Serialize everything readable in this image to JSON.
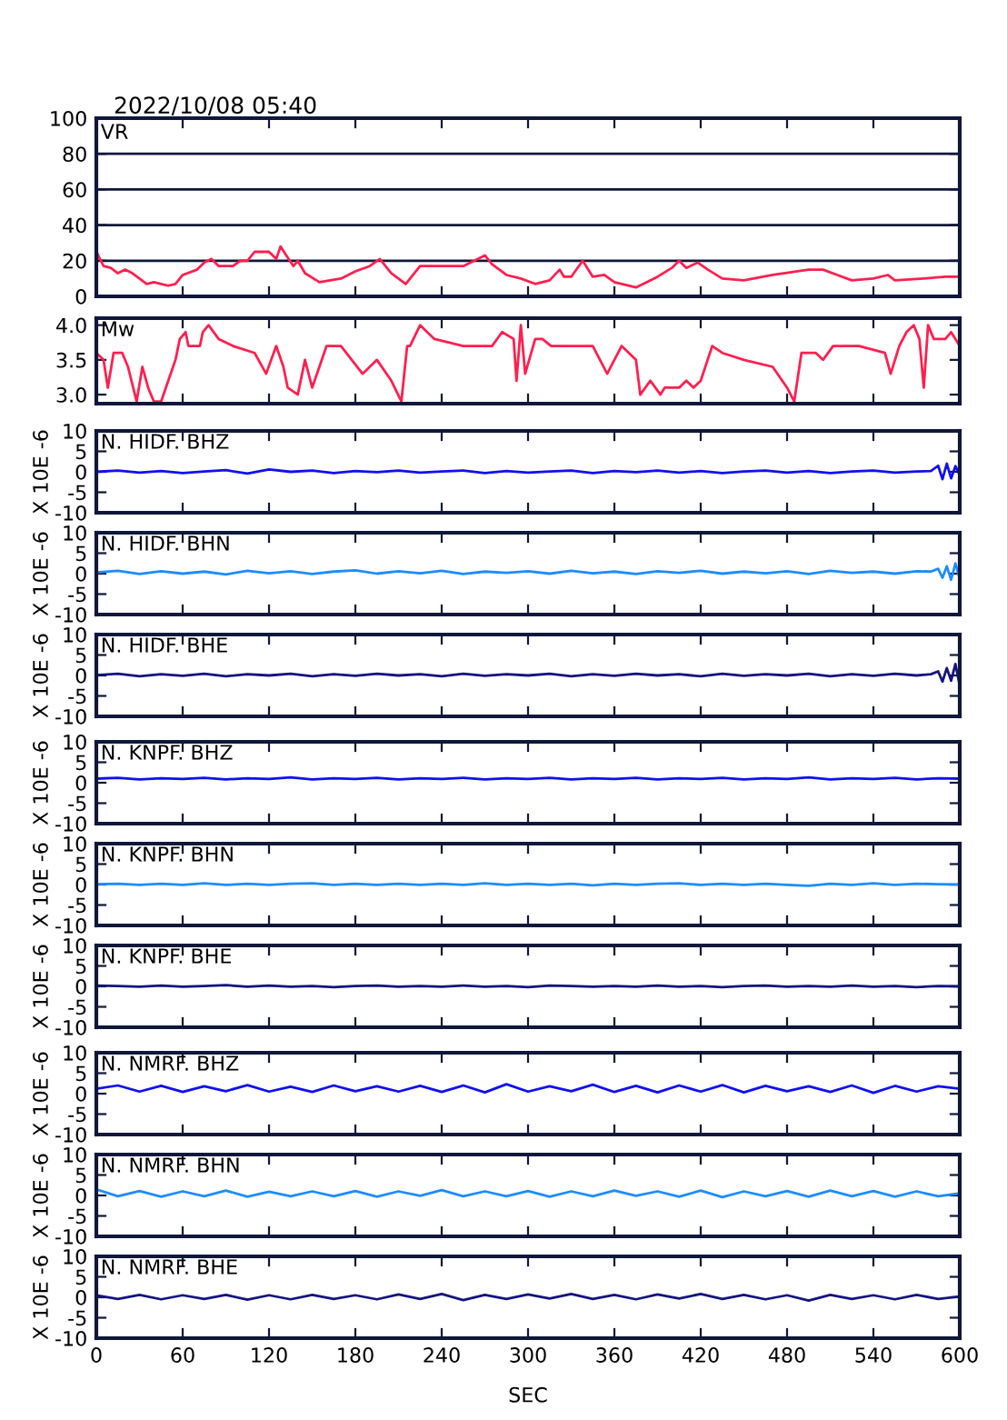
{
  "chart_data": [
    {
      "type": "line",
      "title": "2022/10/08 05:40",
      "xlim": [
        0,
        600
      ],
      "xticks": [
        0,
        60,
        120,
        180,
        240,
        300,
        360,
        420,
        480,
        540,
        600
      ],
      "ylim": [
        0,
        100
      ],
      "yticks": [
        0,
        20,
        40,
        60,
        80,
        100
      ],
      "grid": "y",
      "tick_labels": "y",
      "series": [
        {
          "name": "VR",
          "color": "#ff1f4f",
          "x": [
            0,
            5,
            10,
            15,
            20,
            25,
            30,
            35,
            40,
            45,
            50,
            55,
            60,
            70,
            75,
            80,
            85,
            95,
            100,
            105,
            110,
            120,
            125,
            128,
            132,
            137,
            140,
            145,
            155,
            170,
            180,
            190,
            197,
            205,
            215,
            225,
            240,
            255,
            270,
            275,
            285,
            295,
            305,
            315,
            322,
            325,
            330,
            338,
            345,
            353,
            360,
            375,
            390,
            400,
            405,
            410,
            418,
            425,
            435,
            450,
            470,
            495,
            505,
            515,
            525,
            540,
            550,
            555,
            575,
            590,
            600
          ],
          "values": [
            25,
            17,
            16,
            13,
            15,
            13,
            10,
            7,
            8,
            7,
            6,
            7,
            12,
            15,
            19,
            21,
            17,
            17,
            20,
            20,
            25,
            25,
            21,
            28,
            23,
            17,
            20,
            13,
            8,
            10,
            14,
            17,
            21,
            13,
            7,
            17,
            17,
            17,
            23,
            18,
            12,
            10,
            7,
            9,
            15,
            11,
            11,
            20,
            11,
            12,
            8,
            5,
            11,
            16,
            20,
            16,
            19,
            15,
            10,
            9,
            12,
            15,
            15,
            12,
            9,
            10,
            12,
            9,
            10,
            11,
            11
          ]
        }
      ]
    },
    {
      "type": "line",
      "xlim": [
        0,
        600
      ],
      "xticks": [
        0,
        60,
        120,
        180,
        240,
        300,
        360,
        420,
        480,
        540,
        600
      ],
      "ylim": [
        2.87,
        4.1
      ],
      "yticks": [
        {
          "value": 3,
          "label": "3.0"
        },
        3.5,
        {
          "value": 4,
          "label": "4.0"
        }
      ],
      "tick_labels": "y",
      "series": [
        {
          "name": "Mw",
          "color": "#ff1f4f",
          "x": [
            0,
            5,
            8,
            12,
            18,
            22,
            28,
            32,
            36,
            40,
            45,
            50,
            55,
            58,
            62,
            64,
            72,
            74,
            78,
            85,
            95,
            110,
            118,
            125,
            130,
            133,
            140,
            145,
            150,
            160,
            170,
            185,
            195,
            205,
            212,
            216,
            218,
            225,
            235,
            255,
            275,
            282,
            290,
            292,
            295,
            298,
            305,
            310,
            316,
            330,
            345,
            355,
            365,
            375,
            378,
            385,
            392,
            395,
            405,
            410,
            415,
            420,
            428,
            435,
            450,
            470,
            480,
            485,
            490,
            500,
            505,
            512,
            530,
            548,
            552,
            558,
            563,
            568,
            572,
            575,
            578,
            582,
            590,
            594,
            600
          ],
          "values": [
            3.6,
            3.5,
            3.1,
            3.6,
            3.6,
            3.4,
            2.9,
            3.4,
            3.1,
            2.9,
            2.9,
            3.2,
            3.5,
            3.8,
            3.9,
            3.7,
            3.7,
            3.9,
            4.0,
            3.8,
            3.7,
            3.6,
            3.3,
            3.7,
            3.4,
            3.1,
            3.0,
            3.5,
            3.1,
            3.7,
            3.7,
            3.3,
            3.5,
            3.2,
            2.9,
            3.7,
            3.7,
            4.0,
            3.8,
            3.7,
            3.7,
            3.9,
            3.8,
            3.2,
            4.0,
            3.3,
            3.8,
            3.8,
            3.7,
            3.7,
            3.7,
            3.3,
            3.7,
            3.5,
            3.0,
            3.2,
            3.0,
            3.1,
            3.1,
            3.2,
            3.1,
            3.2,
            3.7,
            3.6,
            3.5,
            3.4,
            3.1,
            2.9,
            3.6,
            3.6,
            3.5,
            3.7,
            3.7,
            3.6,
            3.3,
            3.7,
            3.9,
            4.0,
            3.8,
            3.1,
            4.0,
            3.8,
            3.8,
            3.9,
            3.7
          ]
        }
      ]
    },
    {
      "type": "line",
      "ylabel": "X 10E -6",
      "xlim": [
        0,
        600
      ],
      "xticks": [
        0,
        60,
        120,
        180,
        240,
        300,
        360,
        420,
        480,
        540,
        600
      ],
      "ylim": [
        -10,
        10
      ],
      "yticks": [
        -10,
        -5,
        0,
        5,
        10
      ],
      "tick_labels": "y",
      "series": [
        {
          "name": "N. HIDF. BHZ",
          "color": "#1010f0",
          "x": [
            0,
            15,
            30,
            45,
            60,
            75,
            90,
            105,
            120,
            135,
            150,
            165,
            180,
            195,
            210,
            225,
            240,
            255,
            270,
            285,
            300,
            315,
            330,
            345,
            360,
            375,
            390,
            405,
            420,
            435,
            450,
            465,
            480,
            495,
            510,
            525,
            540,
            555,
            570,
            580,
            585,
            588,
            591,
            594,
            597,
            600
          ],
          "values": [
            0,
            0.3,
            -0.2,
            0.2,
            -0.3,
            0.1,
            0.4,
            -0.4,
            0.6,
            0,
            0.3,
            -0.3,
            0.2,
            -0.1,
            0.3,
            -0.2,
            0.1,
            0.3,
            -0.3,
            0.2,
            -0.2,
            0.1,
            0.3,
            -0.3,
            0.2,
            -0.1,
            0.3,
            -0.2,
            0.2,
            -0.3,
            0.1,
            0.3,
            -0.2,
            0.2,
            -0.3,
            0.1,
            0.3,
            -0.2,
            0.1,
            0.2,
            1.5,
            -1.8,
            2,
            -1.6,
            1.4,
            -0.8
          ]
        }
      ]
    },
    {
      "type": "line",
      "ylabel": "X 10E -6",
      "xlim": [
        0,
        600
      ],
      "xticks": [
        0,
        60,
        120,
        180,
        240,
        300,
        360,
        420,
        480,
        540,
        600
      ],
      "ylim": [
        -10,
        10
      ],
      "yticks": [
        -10,
        -5,
        0,
        5,
        10
      ],
      "tick_labels": "y",
      "series": [
        {
          "name": "N. HIDF. BHN",
          "color": "#1e8cff",
          "x": [
            0,
            15,
            30,
            45,
            60,
            75,
            90,
            105,
            120,
            135,
            150,
            165,
            180,
            195,
            210,
            225,
            240,
            255,
            270,
            285,
            300,
            315,
            330,
            345,
            360,
            375,
            390,
            405,
            420,
            435,
            450,
            465,
            480,
            495,
            510,
            525,
            540,
            555,
            570,
            580,
            585,
            588,
            591,
            594,
            597,
            600
          ],
          "values": [
            0.3,
            0.7,
            -0.1,
            0.6,
            0,
            0.5,
            -0.2,
            0.7,
            0.1,
            0.6,
            -0.1,
            0.5,
            0.8,
            0,
            0.6,
            0.1,
            0.7,
            -0.1,
            0.5,
            0.2,
            0.6,
            0,
            0.7,
            0.1,
            0.5,
            -0.1,
            0.6,
            0.2,
            0.7,
            0,
            0.5,
            0.1,
            0.6,
            -0.1,
            0.7,
            0.2,
            0.5,
            0,
            0.6,
            0.5,
            1.2,
            -1,
            1.8,
            -1.5,
            2.5,
            -1.2
          ]
        }
      ]
    },
    {
      "type": "line",
      "ylabel": "X 10E -6",
      "xlim": [
        0,
        600
      ],
      "xticks": [
        0,
        60,
        120,
        180,
        240,
        300,
        360,
        420,
        480,
        540,
        600
      ],
      "ylim": [
        -10,
        10
      ],
      "yticks": [
        -10,
        -5,
        0,
        5,
        10
      ],
      "tick_labels": "y",
      "series": [
        {
          "name": "N. HIDF. BHE",
          "color": "#14147f",
          "x": [
            0,
            15,
            30,
            45,
            60,
            75,
            90,
            105,
            120,
            135,
            150,
            165,
            180,
            195,
            210,
            225,
            240,
            255,
            270,
            285,
            300,
            315,
            330,
            345,
            360,
            375,
            390,
            405,
            420,
            435,
            450,
            465,
            480,
            495,
            510,
            525,
            540,
            555,
            570,
            580,
            585,
            588,
            591,
            594,
            597,
            600
          ],
          "values": [
            0.1,
            0.4,
            -0.2,
            0.3,
            -0.1,
            0.4,
            -0.2,
            0.3,
            0,
            0.4,
            -0.2,
            0.3,
            -0.1,
            0.4,
            0,
            0.3,
            -0.2,
            0.4,
            -0.1,
            0.3,
            0,
            0.4,
            -0.2,
            0.3,
            -0.1,
            0.4,
            0,
            0.3,
            -0.2,
            0.4,
            -0.1,
            0.3,
            0,
            0.4,
            -0.2,
            0.3,
            -0.1,
            0.4,
            0,
            0.3,
            1,
            -1.5,
            1.8,
            -1.3,
            2.8,
            -2.5
          ]
        }
      ]
    },
    {
      "type": "line",
      "ylabel": "X 10E -6",
      "xlim": [
        0,
        600
      ],
      "xticks": [
        0,
        60,
        120,
        180,
        240,
        300,
        360,
        420,
        480,
        540,
        600
      ],
      "ylim": [
        -10,
        10
      ],
      "yticks": [
        -10,
        -5,
        0,
        5,
        10
      ],
      "tick_labels": "y",
      "series": [
        {
          "name": "N. KNPF. BHZ",
          "color": "#1010f0",
          "x": [
            0,
            15,
            30,
            45,
            60,
            75,
            90,
            105,
            120,
            135,
            150,
            165,
            180,
            195,
            210,
            225,
            240,
            255,
            270,
            285,
            300,
            315,
            330,
            345,
            360,
            375,
            390,
            405,
            420,
            435,
            450,
            465,
            480,
            495,
            510,
            525,
            540,
            555,
            570,
            585,
            600
          ],
          "values": [
            1,
            1.2,
            0.8,
            1.1,
            0.9,
            1.2,
            0.8,
            1.1,
            0.9,
            1.3,
            0.8,
            1.1,
            0.9,
            1.2,
            0.8,
            1.1,
            0.9,
            1.2,
            0.8,
            1.1,
            0.9,
            1.2,
            0.8,
            1.1,
            0.9,
            1.2,
            0.8,
            1.1,
            0.9,
            1.2,
            0.8,
            1.1,
            0.9,
            1.3,
            0.8,
            1.1,
            0.9,
            1.2,
            0.8,
            1.1,
            1
          ]
        }
      ]
    },
    {
      "type": "line",
      "ylabel": "X 10E -6",
      "xlim": [
        0,
        600
      ],
      "xticks": [
        0,
        60,
        120,
        180,
        240,
        300,
        360,
        420,
        480,
        540,
        600
      ],
      "ylim": [
        -10,
        10
      ],
      "yticks": [
        -10,
        -5,
        0,
        5,
        10
      ],
      "tick_labels": "y",
      "series": [
        {
          "name": "N. KNPF. BHN",
          "color": "#1e8cff",
          "x": [
            0,
            15,
            30,
            45,
            60,
            75,
            90,
            105,
            120,
            135,
            150,
            165,
            180,
            195,
            210,
            225,
            240,
            255,
            270,
            285,
            300,
            315,
            330,
            345,
            360,
            375,
            390,
            405,
            420,
            435,
            450,
            465,
            480,
            495,
            510,
            525,
            540,
            555,
            570,
            585,
            600
          ],
          "values": [
            0.1,
            0.2,
            -0.1,
            0.2,
            -0.1,
            0.3,
            -0.1,
            0.2,
            -0.1,
            0.2,
            0.3,
            -0.1,
            0.2,
            -0.1,
            0.2,
            -0.1,
            0.2,
            -0.1,
            0.3,
            -0.1,
            0.2,
            -0.1,
            0.2,
            -0.2,
            0.2,
            -0.1,
            0.2,
            0.3,
            -0.1,
            0.2,
            -0.1,
            0.2,
            -0.1,
            -0.3,
            0.2,
            -0.1,
            0.3,
            -0.1,
            0.2,
            0.1,
            0
          ]
        }
      ]
    },
    {
      "type": "line",
      "ylabel": "X 10E -6",
      "xlim": [
        0,
        600
      ],
      "xticks": [
        0,
        60,
        120,
        180,
        240,
        300,
        360,
        420,
        480,
        540,
        600
      ],
      "ylim": [
        -10,
        10
      ],
      "yticks": [
        -10,
        -5,
        0,
        5,
        10
      ],
      "tick_labels": "y",
      "series": [
        {
          "name": "N. KNPF. BHE",
          "color": "#14147f",
          "x": [
            0,
            15,
            30,
            45,
            60,
            75,
            90,
            105,
            120,
            135,
            150,
            165,
            180,
            195,
            210,
            225,
            240,
            255,
            270,
            285,
            300,
            315,
            330,
            345,
            360,
            375,
            390,
            405,
            420,
            435,
            450,
            465,
            480,
            495,
            510,
            525,
            540,
            555,
            570,
            585,
            600
          ],
          "values": [
            0.2,
            0.1,
            -0.1,
            0.2,
            -0.1,
            0.1,
            0.3,
            -0.1,
            0.2,
            -0.1,
            0.1,
            -0.2,
            0.1,
            0.2,
            -0.1,
            0.1,
            -0.1,
            0.2,
            -0.1,
            0.1,
            -0.2,
            0.2,
            0.1,
            -0.1,
            0.1,
            -0.1,
            0.2,
            -0.1,
            0.1,
            -0.2,
            0.1,
            0.2,
            -0.1,
            0.1,
            -0.1,
            0.2,
            -0.1,
            0.1,
            -0.2,
            0.1,
            0
          ]
        }
      ]
    },
    {
      "type": "line",
      "ylabel": "X 10E -6",
      "xlim": [
        0,
        600
      ],
      "xticks": [
        0,
        60,
        120,
        180,
        240,
        300,
        360,
        420,
        480,
        540,
        600
      ],
      "ylim": [
        -10,
        10
      ],
      "yticks": [
        -10,
        -5,
        0,
        5,
        10
      ],
      "tick_labels": "y",
      "series": [
        {
          "name": "N. NMRF. BHZ",
          "color": "#1010f0",
          "x": [
            0,
            15,
            30,
            45,
            60,
            75,
            90,
            105,
            120,
            135,
            150,
            165,
            180,
            195,
            210,
            225,
            240,
            255,
            270,
            285,
            300,
            315,
            330,
            345,
            360,
            375,
            390,
            405,
            420,
            435,
            450,
            465,
            480,
            495,
            510,
            525,
            540,
            555,
            570,
            585,
            600
          ],
          "values": [
            1.2,
            2,
            0.5,
            1.9,
            0.4,
            1.8,
            0.6,
            2.1,
            0.5,
            1.7,
            0.4,
            2,
            0.6,
            1.8,
            0.5,
            1.9,
            0.4,
            2,
            0.3,
            2.3,
            0.5,
            1.8,
            0.6,
            2.2,
            0.4,
            1.9,
            0.3,
            2,
            0.5,
            2.1,
            0.3,
            1.9,
            0.6,
            1.8,
            0.4,
            2,
            0.2,
            1.9,
            0.5,
            1.8,
            1.2
          ]
        }
      ]
    },
    {
      "type": "line",
      "ylabel": "X 10E -6",
      "xlim": [
        0,
        600
      ],
      "xticks": [
        0,
        60,
        120,
        180,
        240,
        300,
        360,
        420,
        480,
        540,
        600
      ],
      "ylim": [
        -10,
        10
      ],
      "yticks": [
        -10,
        -5,
        0,
        5,
        10
      ],
      "tick_labels": "y",
      "series": [
        {
          "name": "N. NMRF. BHN",
          "color": "#1e8cff",
          "x": [
            0,
            15,
            30,
            45,
            60,
            75,
            90,
            105,
            120,
            135,
            150,
            165,
            180,
            195,
            210,
            225,
            240,
            255,
            270,
            285,
            300,
            315,
            330,
            345,
            360,
            375,
            390,
            405,
            420,
            435,
            450,
            465,
            480,
            495,
            510,
            525,
            540,
            555,
            570,
            585,
            600
          ],
          "values": [
            1.5,
            -0.2,
            1.1,
            -0.3,
            1,
            -0.2,
            1.2,
            -0.3,
            0.9,
            -0.2,
            1,
            -0.2,
            1.1,
            -0.3,
            1,
            -0.1,
            1.3,
            -0.2,
            1,
            -0.2,
            1.1,
            -0.3,
            1,
            -0.2,
            1.2,
            -0.1,
            1,
            -0.3,
            1.2,
            -0.4,
            1,
            -0.2,
            1.1,
            -0.3,
            1.2,
            -0.2,
            1.1,
            -0.3,
            1,
            -0.2,
            0.5
          ]
        }
      ]
    },
    {
      "type": "line",
      "ylabel": "X 10E -6",
      "xlabel": "SEC",
      "xlim": [
        0,
        600
      ],
      "xticks": [
        0,
        60,
        120,
        180,
        240,
        300,
        360,
        420,
        480,
        540,
        600
      ],
      "ylim": [
        -10,
        10
      ],
      "yticks": [
        -10,
        -5,
        0,
        5,
        10
      ],
      "series": [
        {
          "name": "N. NMRF. BHE",
          "color": "#14147f",
          "x": [
            0,
            15,
            30,
            45,
            60,
            75,
            90,
            105,
            120,
            135,
            150,
            165,
            180,
            195,
            210,
            225,
            240,
            255,
            270,
            285,
            300,
            315,
            330,
            345,
            360,
            375,
            390,
            405,
            420,
            435,
            450,
            465,
            480,
            495,
            510,
            525,
            540,
            555,
            570,
            585,
            600
          ],
          "values": [
            0.5,
            -0.4,
            0.6,
            -0.5,
            0.5,
            -0.4,
            0.6,
            -0.6,
            0.5,
            -0.5,
            0.6,
            -0.4,
            0.5,
            -0.5,
            0.7,
            -0.4,
            0.8,
            -0.7,
            0.6,
            -0.4,
            0.7,
            -0.3,
            0.8,
            -0.4,
            0.6,
            -0.5,
            0.7,
            -0.3,
            0.8,
            -0.4,
            0.6,
            -0.5,
            0.5,
            -0.8,
            0.6,
            -0.4,
            0.5,
            -0.5,
            0.6,
            -0.4,
            0.2
          ]
        }
      ]
    }
  ]
}
